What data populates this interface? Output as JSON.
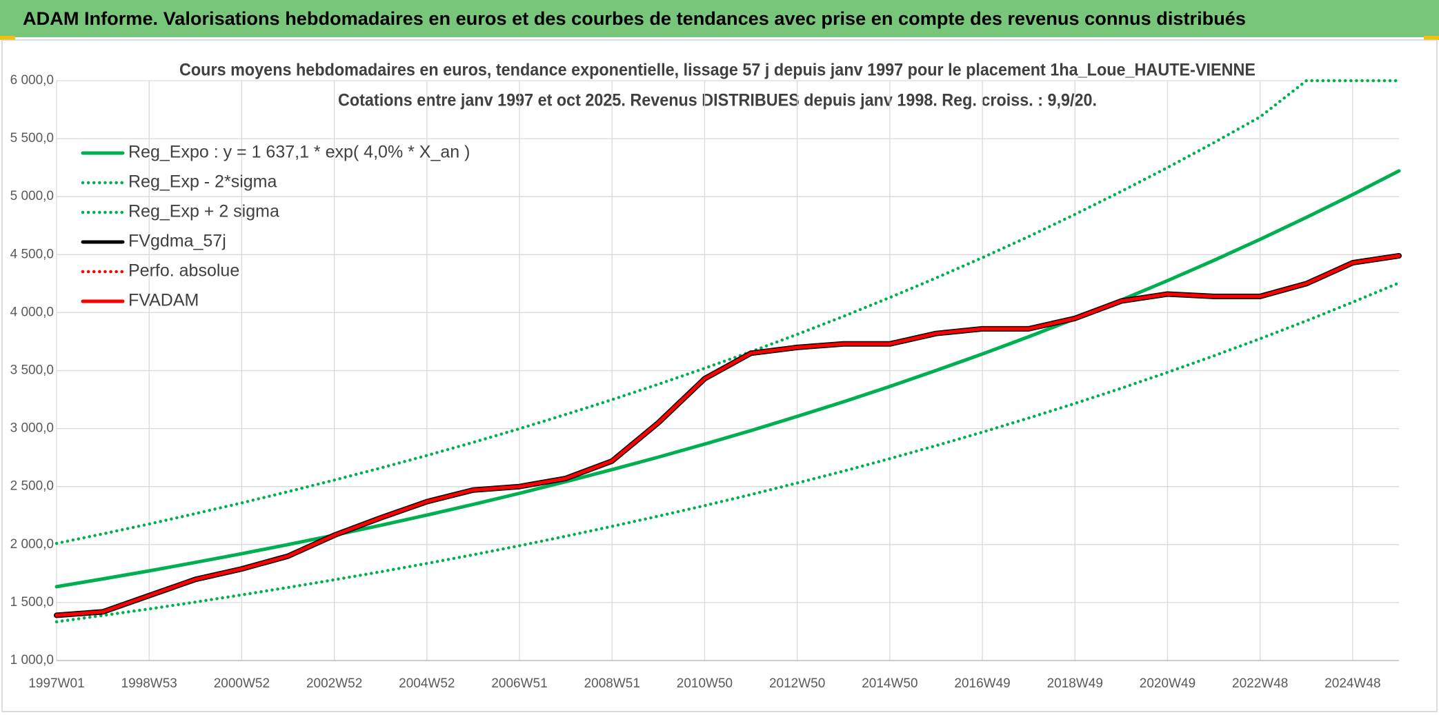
{
  "chart_data": {
    "type": "line",
    "title": "ADAM Informe. Valorisations hebdomadaires en euros et des courbes de tendances avec prise en compte des revenus connus distribués",
    "subtitle": [
      "Cours moyens hebdomadaires en euros, tendance exponentielle, lissage 57 j depuis janv 1997 pour le placement 1ha_Loue_HAUTE-VIENNE",
      "Cotations entre janv 1997 et oct 2025. Revenus DISTRIBUES depuis janv 1998. Reg. croiss. : 9,9/20."
    ],
    "categories": [
      "1997W01",
      null,
      "1998W53",
      null,
      "2000W52",
      null,
      "2002W52",
      null,
      "2004W52",
      null,
      "2006W51",
      null,
      "2008W51",
      null,
      "2010W50",
      null,
      "2012W50",
      null,
      "2014W50",
      null,
      "2016W49",
      null,
      "2018W49",
      null,
      "2020W49",
      null,
      "2022W48",
      null,
      "2024W48",
      null
    ],
    "ylim": [
      1000,
      6000
    ],
    "yticks": [
      {
        "value": 1000,
        "label": "1 000,0"
      },
      {
        "value": 1500,
        "label": "1 500,0"
      },
      {
        "value": 2000,
        "label": "2 000,0"
      },
      {
        "value": 2500,
        "label": "2 500,0"
      },
      {
        "value": 3000,
        "label": "3 000,0"
      },
      {
        "value": 3500,
        "label": "3 500,0"
      },
      {
        "value": 4000,
        "label": "4 000,0"
      },
      {
        "value": 4500,
        "label": "4 500,0"
      },
      {
        "value": 5000,
        "label": "5 000,0"
      },
      {
        "value": 5500,
        "label": "5 500,0"
      },
      {
        "value": 6000,
        "label": "6 000,0"
      }
    ],
    "grid": true,
    "legend": "upper-left",
    "series": [
      {
        "name": "Reg_Expo : y = 1 637,1 * exp( 4,0% *  X_an )",
        "color": "#00b050",
        "style": "solid",
        "values": [
          1637,
          1704,
          1773,
          1846,
          1921,
          2000,
          2081,
          2166,
          2254,
          2346,
          2442,
          2542,
          2646,
          2754,
          2866,
          2983,
          3105,
          3231,
          3363,
          3501,
          3643,
          3792,
          3947,
          4108,
          4276,
          4450,
          4632,
          4821,
          5018,
          5222
        ]
      },
      {
        "name": "Reg_Exp - 2*sigma",
        "color": "#00b050",
        "style": "dotted",
        "values": [
          1334,
          1389,
          1445,
          1504,
          1566,
          1630,
          1696,
          1765,
          1837,
          1912,
          1990,
          2072,
          2157,
          2245,
          2336,
          2431,
          2531,
          2633,
          2741,
          2853,
          2969,
          3091,
          3217,
          3348,
          3485,
          3627,
          3775,
          3929,
          4090,
          4256
        ]
      },
      {
        "name": "Reg_Exp + 2 sigma",
        "color": "#00b050",
        "style": "dotted",
        "values": [
          2010,
          2092,
          2177,
          2267,
          2359,
          2456,
          2556,
          2660,
          2768,
          2881,
          2999,
          3122,
          3249,
          3382,
          3520,
          3663,
          3813,
          3968,
          4130,
          4299,
          4474,
          4656,
          4847,
          5045,
          5251,
          5465,
          5688,
          6000,
          6000,
          6000
        ]
      },
      {
        "name": "FVgdma_57j",
        "color": "#000000",
        "style": "solid",
        "values": [
          1390,
          1420,
          1560,
          1700,
          1790,
          1900,
          2080,
          2230,
          2370,
          2470,
          2500,
          2570,
          2720,
          3050,
          3430,
          3650,
          3700,
          3730,
          3730,
          3820,
          3860,
          3860,
          3950,
          4100,
          4160,
          4140,
          4140,
          4250,
          4430,
          4490
        ]
      },
      {
        "name": "Perfo. absolue",
        "color": "#ff0000",
        "style": "dotted",
        "values": [
          null,
          null,
          null,
          null,
          null,
          null,
          null,
          null,
          null,
          null,
          null,
          null,
          null,
          null,
          null,
          null,
          null,
          null,
          null,
          null,
          null,
          null,
          null,
          null,
          null,
          null,
          null,
          null,
          null,
          null
        ]
      },
      {
        "name": "FVADAM",
        "color": "#ff0000",
        "style": "solid",
        "values": [
          1390,
          1420,
          1560,
          1700,
          1790,
          1900,
          2080,
          2230,
          2370,
          2470,
          2500,
          2570,
          2720,
          3050,
          3430,
          3650,
          3700,
          3730,
          3730,
          3820,
          3860,
          3860,
          3950,
          4100,
          4160,
          4140,
          4140,
          4250,
          4430,
          4490
        ]
      }
    ]
  }
}
